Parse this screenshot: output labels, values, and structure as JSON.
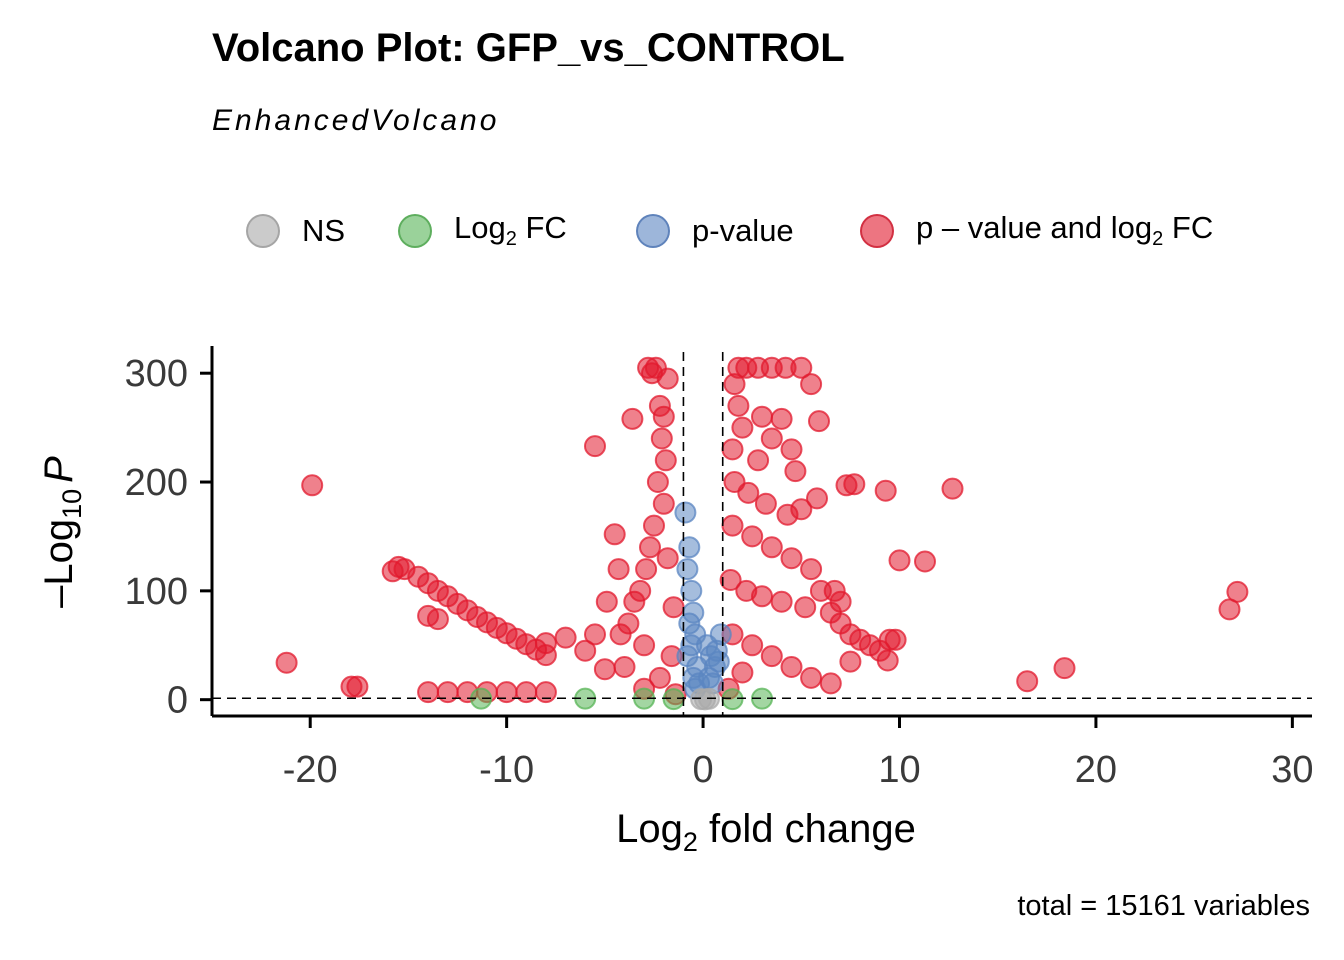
{
  "chart_data": {
    "type": "scatter",
    "title": "Volcano Plot: GFP_vs_CONTROL",
    "subtitle": "EnhancedVolcano",
    "xlabel": "Log2 fold change",
    "xlabel_base": "Log",
    "xlabel_sub": "2",
    "xlabel_rest": " fold change",
    "ylabel": "-Log10 P",
    "ylabel_base": "–Log",
    "ylabel_sub": "10",
    "ylabel_rest": "P",
    "xlim": [
      -25,
      31
    ],
    "ylim": [
      -15,
      325
    ],
    "xticks": [
      -20,
      -10,
      0,
      10,
      20,
      30
    ],
    "xtick_labels": [
      "-20",
      "-10",
      "0",
      "10",
      "20",
      "30"
    ],
    "yticks": [
      0,
      100,
      200,
      300
    ],
    "ytick_labels": [
      "0",
      "100",
      "200",
      "300"
    ],
    "fc_cutoff": 1,
    "p_cutoff_neglog10": 1.3,
    "grid": false,
    "legend_position": "top",
    "legend": [
      {
        "key": "ns",
        "label": "NS",
        "color": "#a9a9a9"
      },
      {
        "key": "fc",
        "label_base": "Log",
        "label_sub": "2",
        "label_rest": " FC",
        "color": "#57b456"
      },
      {
        "key": "p",
        "label": "p-value",
        "color": "#5b86c1"
      },
      {
        "key": "both",
        "label_base": "p – value and log",
        "label_sub": "2",
        "label_rest": " FC",
        "color": "#e1192d"
      }
    ],
    "caption": "total = 15161 variables",
    "series": [
      {
        "key": "both",
        "color": "#e1192d",
        "points": [
          [
            -19.9,
            197
          ],
          [
            -21.2,
            34
          ],
          [
            -17.6,
            12
          ],
          [
            -17.9,
            12
          ],
          [
            -15.8,
            118
          ],
          [
            -15.5,
            122
          ],
          [
            -15.2,
            120
          ],
          [
            -14.5,
            113
          ],
          [
            -14.0,
            107
          ],
          [
            -13.5,
            100
          ],
          [
            -13.0,
            95
          ],
          [
            -12.5,
            88
          ],
          [
            -12.0,
            82
          ],
          [
            -11.5,
            76
          ],
          [
            -11.0,
            71
          ],
          [
            -10.5,
            66
          ],
          [
            -10.0,
            61
          ],
          [
            -9.5,
            56
          ],
          [
            -9.0,
            51
          ],
          [
            -8.5,
            46
          ],
          [
            -8.0,
            41
          ],
          [
            -14.0,
            77
          ],
          [
            -13.5,
            74
          ],
          [
            -8.0,
            52
          ],
          [
            -7.0,
            57
          ],
          [
            -14.0,
            7
          ],
          [
            -13.0,
            7
          ],
          [
            -12.0,
            7
          ],
          [
            -11.0,
            7
          ],
          [
            -10.0,
            7
          ],
          [
            -9.0,
            7
          ],
          [
            -8.0,
            7
          ],
          [
            -5.0,
            28
          ],
          [
            -4.5,
            152
          ],
          [
            -4.3,
            120
          ],
          [
            -4.9,
            90
          ],
          [
            -6.0,
            45
          ],
          [
            -5.5,
            60
          ],
          [
            -3.6,
            258
          ],
          [
            -5.5,
            233
          ],
          [
            -2.8,
            305
          ],
          [
            -2.4,
            305
          ],
          [
            -2.6,
            300
          ],
          [
            -1.8,
            295
          ],
          [
            -2.0,
            260
          ],
          [
            -2.2,
            270
          ],
          [
            -2.1,
            240
          ],
          [
            -1.9,
            220
          ],
          [
            -2.3,
            200
          ],
          [
            -2.0,
            180
          ],
          [
            -2.5,
            160
          ],
          [
            -2.7,
            140
          ],
          [
            -1.8,
            130
          ],
          [
            -2.9,
            120
          ],
          [
            -3.2,
            100
          ],
          [
            -3.5,
            90
          ],
          [
            -1.5,
            85
          ],
          [
            -3.8,
            70
          ],
          [
            -4.2,
            60
          ],
          [
            -3.0,
            50
          ],
          [
            -1.6,
            40
          ],
          [
            -4.0,
            30
          ],
          [
            -2.2,
            20
          ],
          [
            -3.0,
            10
          ],
          [
            -1.4,
            5
          ],
          [
            1.8,
            305
          ],
          [
            2.2,
            305
          ],
          [
            2.8,
            305
          ],
          [
            3.5,
            305
          ],
          [
            4.2,
            305
          ],
          [
            5.0,
            305
          ],
          [
            5.5,
            290
          ],
          [
            5.9,
            256
          ],
          [
            4.0,
            258
          ],
          [
            4.5,
            230
          ],
          [
            1.6,
            290
          ],
          [
            1.8,
            270
          ],
          [
            2.0,
            250
          ],
          [
            1.5,
            230
          ],
          [
            3.0,
            260
          ],
          [
            3.5,
            240
          ],
          [
            2.8,
            220
          ],
          [
            4.7,
            210
          ],
          [
            5.0,
            175
          ],
          [
            1.6,
            200
          ],
          [
            2.3,
            190
          ],
          [
            3.2,
            180
          ],
          [
            4.3,
            170
          ],
          [
            5.8,
            185
          ],
          [
            7.3,
            197
          ],
          [
            7.7,
            198
          ],
          [
            9.3,
            192
          ],
          [
            12.7,
            194
          ],
          [
            10.0,
            128
          ],
          [
            11.3,
            127
          ],
          [
            1.5,
            160
          ],
          [
            2.5,
            150
          ],
          [
            3.5,
            140
          ],
          [
            4.5,
            130
          ],
          [
            5.5,
            120
          ],
          [
            1.4,
            110
          ],
          [
            2.2,
            100
          ],
          [
            3.0,
            95
          ],
          [
            4.0,
            90
          ],
          [
            5.2,
            85
          ],
          [
            6.0,
            100
          ],
          [
            6.5,
            80
          ],
          [
            7.0,
            70
          ],
          [
            7.5,
            60
          ],
          [
            8.0,
            55
          ],
          [
            8.5,
            50
          ],
          [
            9.0,
            45
          ],
          [
            9.5,
            55
          ],
          [
            9.8,
            55
          ],
          [
            9.4,
            36
          ],
          [
            7.0,
            90
          ],
          [
            6.7,
            100
          ],
          [
            1.5,
            60
          ],
          [
            2.5,
            50
          ],
          [
            3.5,
            40
          ],
          [
            4.5,
            30
          ],
          [
            5.5,
            20
          ],
          [
            1.3,
            10
          ],
          [
            2.0,
            25
          ],
          [
            6.5,
            15
          ],
          [
            7.5,
            35
          ],
          [
            16.5,
            17
          ],
          [
            18.4,
            29
          ],
          [
            26.8,
            83
          ],
          [
            27.2,
            99
          ]
        ]
      },
      {
        "key": "p",
        "color": "#5b86c1",
        "points": [
          [
            -0.9,
            172
          ],
          [
            -0.7,
            140
          ],
          [
            -0.8,
            120
          ],
          [
            -0.6,
            100
          ],
          [
            -0.5,
            80
          ],
          [
            -0.7,
            70
          ],
          [
            -0.4,
            60
          ],
          [
            -0.6,
            50
          ],
          [
            -0.8,
            40
          ],
          [
            -0.3,
            30
          ],
          [
            -0.5,
            20
          ],
          [
            -0.2,
            15
          ],
          [
            -0.4,
            10
          ],
          [
            0.2,
            50
          ],
          [
            0.4,
            40
          ],
          [
            0.6,
            30
          ],
          [
            0.8,
            35
          ],
          [
            0.3,
            20
          ],
          [
            0.5,
            15
          ],
          [
            0.7,
            45
          ],
          [
            0.9,
            60
          ]
        ]
      },
      {
        "key": "fc",
        "color": "#57b456",
        "points": [
          [
            -11.3,
            1
          ],
          [
            -6.0,
            1
          ],
          [
            -3.0,
            1
          ],
          [
            -1.5,
            0.5
          ],
          [
            1.5,
            0.5
          ],
          [
            3.0,
            1
          ]
        ]
      },
      {
        "key": "ns",
        "color": "#a9a9a9",
        "points": [
          [
            0.1,
            0.3
          ],
          [
            -0.1,
            0.5
          ],
          [
            0.3,
            0.8
          ]
        ]
      }
    ]
  }
}
